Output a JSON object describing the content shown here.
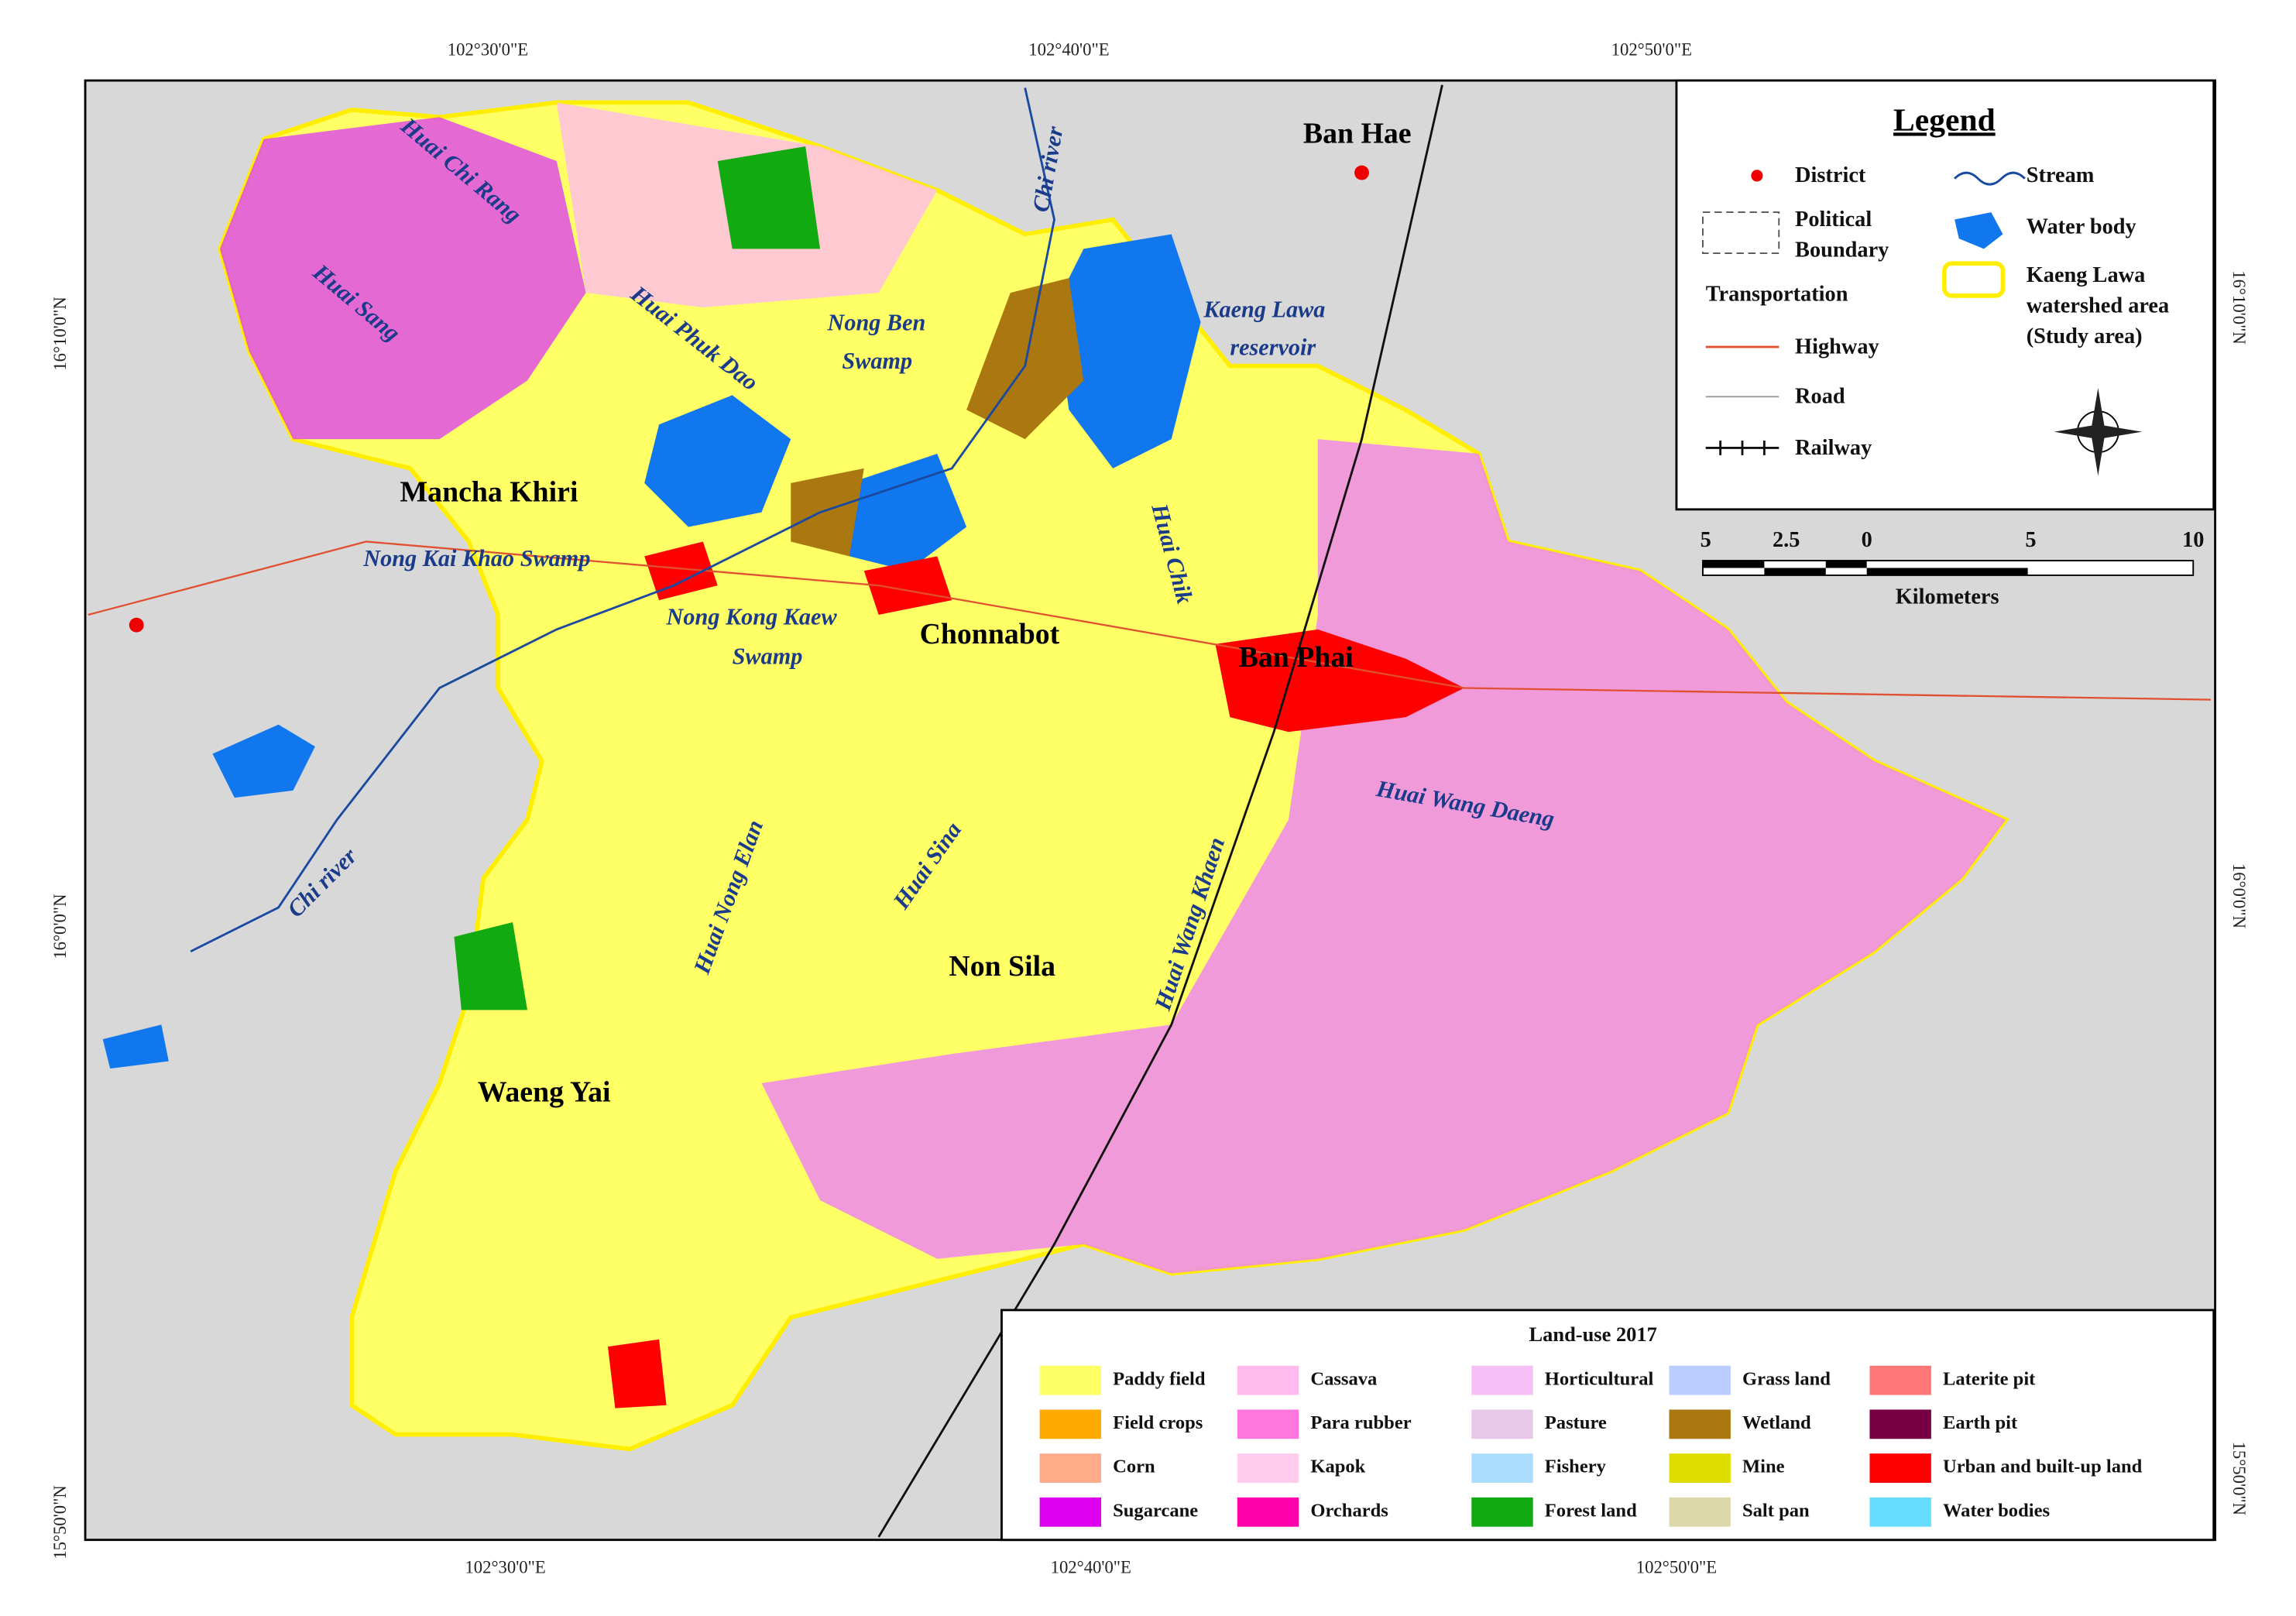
{
  "map": {
    "coords": {
      "top": [
        "102°30'0\"E",
        "102°40'0\"E",
        "102°50'0\"E"
      ],
      "bottom": [
        "102°30'0\"E",
        "102°40'0\"E",
        "102°50'0\"E"
      ],
      "left": [
        "16°10'0\"N",
        "16°0'0\"N",
        "15°50'0\"N"
      ],
      "right": [
        "16°10'0\"N",
        "16°0'0\"N",
        "15°50'0\"N"
      ]
    },
    "places": [
      "Ban Hae",
      "Mancha Khiri",
      "Chonnabot",
      "Ban Phai",
      "Non Sila",
      "Waeng Yai"
    ],
    "water_labels": [
      "Huai Chi Rang",
      "Huai Sang",
      "Huai Phuk Dao",
      "Nong Ben",
      "Swamp",
      "Chi river",
      "Kaeng Lawa",
      "reservoir",
      "Nong Kai Khao Swamp",
      "Nong Kong Kaew",
      "Swamp",
      "Huai Chik",
      "Huai Nong Elan",
      "Huai Sina",
      "Huai Wang Khaen",
      "Huai Wang Daeng",
      "Chi river"
    ],
    "legend": {
      "title": "Legend",
      "items": [
        "District",
        "Political",
        "Boundary",
        "Transportation",
        "Highway",
        "Road",
        "Railway",
        "Stream",
        "Water body",
        "Kaeng Lawa",
        "watershed area",
        "(Study area)"
      ]
    },
    "scale": {
      "ticks": [
        "5",
        "2.5",
        "0",
        "5",
        "10"
      ],
      "unit": "Kilometers"
    },
    "land_use": {
      "title": "Land-use 2017",
      "items": [
        {
          "label": "Paddy field",
          "color": "#ffff66"
        },
        {
          "label": "Field crops",
          "color": "#ffaa00"
        },
        {
          "label": "Corn",
          "color": "#ffaa88"
        },
        {
          "label": "Sugarcane",
          "color": "#dd00ee"
        },
        {
          "label": "Cassava",
          "color": "#ffbbee"
        },
        {
          "label": "Para rubber",
          "color": "#ff77dd"
        },
        {
          "label": "Kapok",
          "color": "#ffccee"
        },
        {
          "label": "Orchards",
          "color": "#ff00aa"
        },
        {
          "label": "Horticultural",
          "color": "#f5c0f5"
        },
        {
          "label": "Pasture",
          "color": "#e8c8e8"
        },
        {
          "label": "Fishery",
          "color": "#aaddff"
        },
        {
          "label": "Forest land",
          "color": "#11aa11"
        },
        {
          "label": "Grass land",
          "color": "#bbccff"
        },
        {
          "label": "Wetland",
          "color": "#aa7711"
        },
        {
          "label": "Mine",
          "color": "#dddd00"
        },
        {
          "label": "Salt pan",
          "color": "#ddd8aa"
        },
        {
          "label": "Laterite pit",
          "color": "#ff7777"
        },
        {
          "label": "Earth pit",
          "color": "#770044"
        },
        {
          "label": "Urban and built-up land",
          "color": "#ff0000"
        },
        {
          "label": "Water bodies",
          "color": "#66ddff"
        }
      ]
    }
  }
}
